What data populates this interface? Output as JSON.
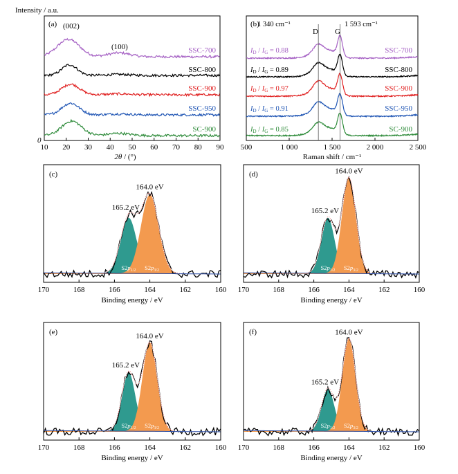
{
  "figure": {
    "panels": [
      {
        "id": "a",
        "label": "(a)",
        "type": "line",
        "ylabel": "Intensity / a.u.",
        "xlabel_html": "2θ / (°)",
        "xlim": [
          10,
          90
        ],
        "xticks": [
          10,
          20,
          30,
          40,
          50,
          60,
          70,
          80,
          90
        ],
        "y_origin_label": "0",
        "annotations": [
          "(002)",
          "(100)"
        ],
        "series": [
          {
            "name": "SSC-700",
            "color": "#a45fc3"
          },
          {
            "name": "SSC-800",
            "color": "#000000"
          },
          {
            "name": "SSC-900",
            "color": "#e02020"
          },
          {
            "name": "SSC-950",
            "color": "#1f55b4"
          },
          {
            "name": "SC-900",
            "color": "#2e8b3a"
          }
        ]
      },
      {
        "id": "b",
        "label": "(b)",
        "type": "line",
        "xlabel": "Raman shift / cm⁻¹",
        "xlim": [
          500,
          2500
        ],
        "xticks": [
          "500",
          "1 000",
          "1 500",
          "2 000",
          "2 500"
        ],
        "reference_lines": [
          {
            "position": 1340,
            "label": "1 340 cm⁻¹",
            "band": "D"
          },
          {
            "position": 1593,
            "label": "1 593 cm⁻¹",
            "band": "G"
          }
        ],
        "series": [
          {
            "name": "SSC-700",
            "color": "#a45fc3",
            "ratio_label": "I_D / I_G = 0.88",
            "ratio": 0.88
          },
          {
            "name": "SSC-800",
            "color": "#000000",
            "ratio_label": "I_D / I_G = 0.89",
            "ratio": 0.89
          },
          {
            "name": "SSC-900",
            "color": "#e02020",
            "ratio_label": "I_D / I_G = 0.97",
            "ratio": 0.97
          },
          {
            "name": "SSC-950",
            "color": "#1f55b4",
            "ratio_label": "I_D / I_G = 0.91",
            "ratio": 0.91
          },
          {
            "name": "SC-900",
            "color": "#2e8b3a",
            "ratio_label": "I_D / I_G = 0.85",
            "ratio": 0.85
          }
        ]
      },
      {
        "id": "c",
        "label": "(c)",
        "type": "area",
        "xlabel": "Binding energy / eV",
        "xlim": [
          170,
          160
        ],
        "xticks": [
          170,
          168,
          166,
          164,
          162,
          160
        ],
        "peaks": [
          {
            "label": "165.2 eV",
            "position": 165.2,
            "component": "S2p1/2",
            "color": "#2f9a8f"
          },
          {
            "label": "164.0 eV",
            "position": 164.0,
            "component": "S2p3/2",
            "color": "#f39a4f"
          }
        ]
      },
      {
        "id": "d",
        "label": "(d)",
        "type": "area",
        "xlabel": "Binding energy / eV",
        "xlim": [
          170,
          160
        ],
        "xticks": [
          170,
          168,
          166,
          164,
          162,
          160
        ],
        "peaks": [
          {
            "label": "165.2 eV",
            "position": 165.2,
            "component": "S2p1/2",
            "color": "#2f9a8f"
          },
          {
            "label": "164.0 eV",
            "position": 164.0,
            "component": "S2p3/2",
            "color": "#f39a4f"
          }
        ]
      },
      {
        "id": "e",
        "label": "(e)",
        "type": "area",
        "xlabel": "Binding energy / eV",
        "xlim": [
          170,
          160
        ],
        "xticks": [
          170,
          168,
          166,
          164,
          162,
          160
        ],
        "peaks": [
          {
            "label": "165.2 eV",
            "position": 165.2,
            "component": "S2p1/2",
            "color": "#2f9a8f"
          },
          {
            "label": "164.0 eV",
            "position": 164.0,
            "component": "S2p3/2",
            "color": "#f39a4f"
          }
        ]
      },
      {
        "id": "f",
        "label": "(f)",
        "type": "area",
        "xlabel": "Binding energy / eV",
        "xlim": [
          170,
          160
        ],
        "xticks": [
          170,
          168,
          166,
          164,
          162,
          160
        ],
        "peaks": [
          {
            "label": "165.2 eV",
            "position": 165.2,
            "component": "S2p1/2",
            "color": "#2f9a8f"
          },
          {
            "label": "164.0 eV",
            "position": 164.0,
            "component": "S2p3/2",
            "color": "#f39a4f"
          }
        ]
      }
    ]
  },
  "chart_data": [
    {
      "type": "line",
      "panel": "(a)",
      "ylabel": "Intensity / a.u.",
      "xlabel": "2θ / (°)",
      "xlim": [
        10,
        90
      ],
      "grid": false,
      "annotations": [
        {
          "text": "(002)",
          "x": 21
        },
        {
          "text": "(100)",
          "x": 44
        }
      ],
      "series": [
        {
          "name": "SSC-700",
          "offset": 4,
          "peaks": [
            {
              "x": 21,
              "h": 0.9,
              "w": 5
            },
            {
              "x": 44,
              "h": 0.2,
              "w": 5
            }
          ]
        },
        {
          "name": "SSC-800",
          "offset": 3,
          "peaks": [
            {
              "x": 21.5,
              "h": 0.55,
              "w": 3.5
            },
            {
              "x": 44,
              "h": 0.05,
              "w": 5
            }
          ]
        },
        {
          "name": "SSC-900",
          "offset": 2,
          "peaks": [
            {
              "x": 22,
              "h": 0.55,
              "w": 4
            },
            {
              "x": 44,
              "h": 0.05,
              "w": 5
            }
          ]
        },
        {
          "name": "SSC-950",
          "offset": 1,
          "peaks": [
            {
              "x": 22,
              "h": 0.6,
              "w": 4
            },
            {
              "x": 44,
              "h": 0.05,
              "w": 5
            }
          ]
        },
        {
          "name": "SC-900",
          "offset": 0,
          "peaks": [
            {
              "x": 22.5,
              "h": 0.75,
              "w": 4.5
            },
            {
              "x": 44,
              "h": 0.12,
              "w": 5
            }
          ]
        }
      ]
    },
    {
      "type": "line",
      "panel": "(b)",
      "xlabel": "Raman shift / cm⁻¹",
      "xlim": [
        500,
        2500
      ],
      "grid": false,
      "series": [
        {
          "name": "SSC-700",
          "ID_IG": 0.88,
          "offset": 4,
          "D": 1340,
          "G": 1593
        },
        {
          "name": "SSC-800",
          "ID_IG": 0.89,
          "offset": 3,
          "D": 1340,
          "G": 1593
        },
        {
          "name": "SSC-900",
          "ID_IG": 0.97,
          "offset": 2,
          "D": 1340,
          "G": 1593
        },
        {
          "name": "SSC-950",
          "ID_IG": 0.91,
          "offset": 1,
          "D": 1340,
          "G": 1593
        },
        {
          "name": "SC-900",
          "ID_IG": 0.85,
          "offset": 0,
          "D": 1340,
          "G": 1593
        }
      ]
    },
    {
      "type": "area",
      "panel": "(c)",
      "xlabel": "Binding energy / eV",
      "xlim": [
        170,
        160
      ],
      "components": [
        {
          "name": "S2p1/2",
          "center": 165.2,
          "height": 0.55,
          "width": 0.45
        },
        {
          "name": "S2p3/2",
          "center": 164.0,
          "height": 0.78,
          "width": 0.5
        }
      ]
    },
    {
      "type": "area",
      "panel": "(d)",
      "xlabel": "Binding energy / eV",
      "xlim": [
        170,
        160
      ],
      "components": [
        {
          "name": "S2p1/2",
          "center": 165.2,
          "height": 0.55,
          "width": 0.38
        },
        {
          "name": "S2p3/2",
          "center": 164.0,
          "height": 0.95,
          "width": 0.4
        }
      ]
    },
    {
      "type": "area",
      "panel": "(e)",
      "xlabel": "Binding energy / eV",
      "xlim": [
        170,
        160
      ],
      "components": [
        {
          "name": "S2p1/2",
          "center": 165.2,
          "height": 0.58,
          "width": 0.38
        },
        {
          "name": "S2p3/2",
          "center": 164.0,
          "height": 0.88,
          "width": 0.42
        }
      ]
    },
    {
      "type": "area",
      "panel": "(f)",
      "xlabel": "Binding energy / eV",
      "xlim": [
        170,
        160
      ],
      "components": [
        {
          "name": "S2p1/2",
          "center": 165.2,
          "height": 0.42,
          "width": 0.36
        },
        {
          "name": "S2p3/2",
          "center": 164.0,
          "height": 0.92,
          "width": 0.38
        }
      ]
    }
  ]
}
